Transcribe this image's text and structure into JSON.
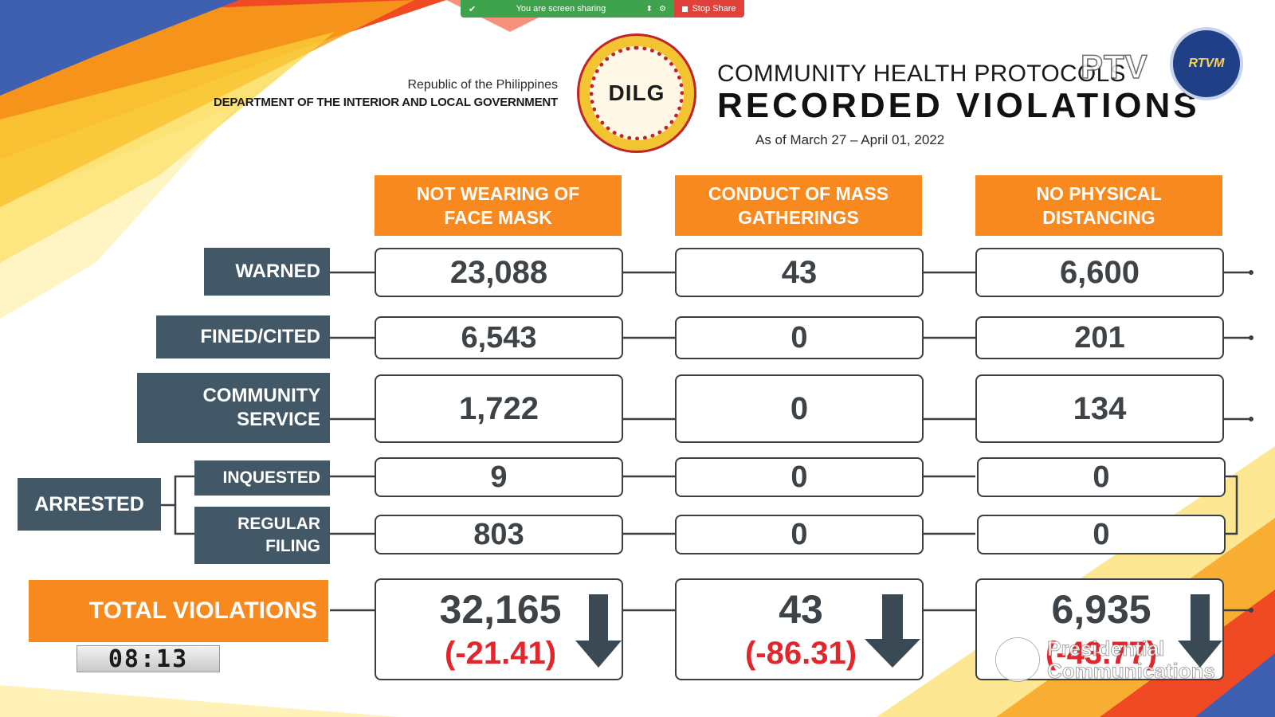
{
  "share_bar": {
    "status": "You are screen sharing",
    "stop_label": "Stop Share"
  },
  "header": {
    "republic": "Republic of the Philippines",
    "department": "DEPARTMENT OF THE INTERIOR AND LOCAL GOVERNMENT",
    "logo_text": "DILG",
    "subtitle": "COMMUNITY HEALTH PROTOCOLS",
    "title": "RECORDED VIOLATIONS",
    "as_of": "As of March 27 – April 01, 2022",
    "ptv_logo": "PTV",
    "rtvm_logo": "RTVM"
  },
  "columns": [
    {
      "label": "NOT WEARING OF FACE MASK"
    },
    {
      "label": "CONDUCT OF MASS GATHERINGS"
    },
    {
      "label": "NO PHYSICAL DISTANCING"
    }
  ],
  "rows": {
    "warned": {
      "label": "WARNED",
      "values": [
        "23,088",
        "43",
        "6,600"
      ]
    },
    "fined": {
      "label": "FINED/CITED",
      "values": [
        "6,543",
        "0",
        "201"
      ]
    },
    "community": {
      "label": "COMMUNITY SERVICE",
      "values": [
        "1,722",
        "0",
        "134"
      ]
    },
    "arrested": {
      "label": "ARRESTED"
    },
    "inquested": {
      "label": "INQUESTED",
      "values": [
        "9",
        "0",
        "0"
      ]
    },
    "regular": {
      "label": "REGULAR FILING",
      "values": [
        "803",
        "0",
        "0"
      ]
    }
  },
  "totals": {
    "label": "TOTAL VIOLATIONS",
    "values": [
      "32,165",
      "43",
      "6,935"
    ],
    "changes": [
      "(-21.41)",
      "(-86.31)",
      "(-43.77)"
    ],
    "trend_icon": "down-arrow-icon"
  },
  "timer": "08:13",
  "watermark": "Presidential Communications",
  "colors": {
    "accent_orange": "#f7891f",
    "label_slate": "#435866",
    "change_red": "#e1262c"
  }
}
